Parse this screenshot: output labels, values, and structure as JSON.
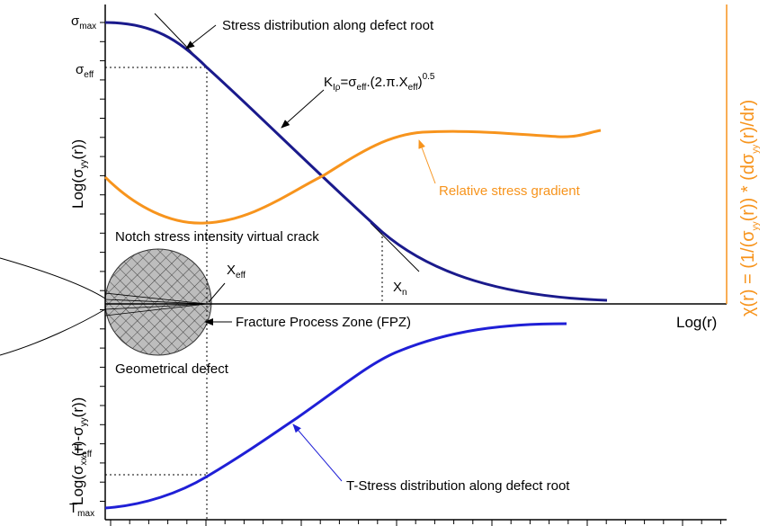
{
  "labels": {
    "sigma_max": [
      "σ",
      "max"
    ],
    "sigma_eff": [
      "σ",
      "eff"
    ],
    "stress_distribution": "Stress distribution along defect root",
    "k_formula": [
      "K",
      "Iρ",
      "=σ",
      "eff",
      ".(2.π.X",
      "eff",
      ")",
      "0.5"
    ],
    "left_axis_top": [
      "Log(σ",
      "yy",
      "(r))"
    ],
    "relative_gradient": "Relative stress gradient",
    "notch_crack": "Notch stress intensity virtual crack",
    "x_eff": [
      "X",
      "eff"
    ],
    "x_n": [
      "X",
      "n"
    ],
    "fpz": "Fracture Process Zone (FPZ)",
    "geometrical_defect": "Geometrical defect",
    "x_axis": "Log(r)",
    "left_axis_bottom": [
      "Log(σ",
      "xx",
      "(r)-σ",
      "yy",
      "(r))"
    ],
    "t_eff": [
      "T",
      "eff"
    ],
    "t_stress": "T-Stress distribution along defect root",
    "t_max": [
      "T",
      "max"
    ],
    "right_axis": [
      "χ(r) = (1/(σ",
      "yy",
      "(r)) * (dσ",
      "yy",
      "(r)/dr)"
    ]
  }
}
